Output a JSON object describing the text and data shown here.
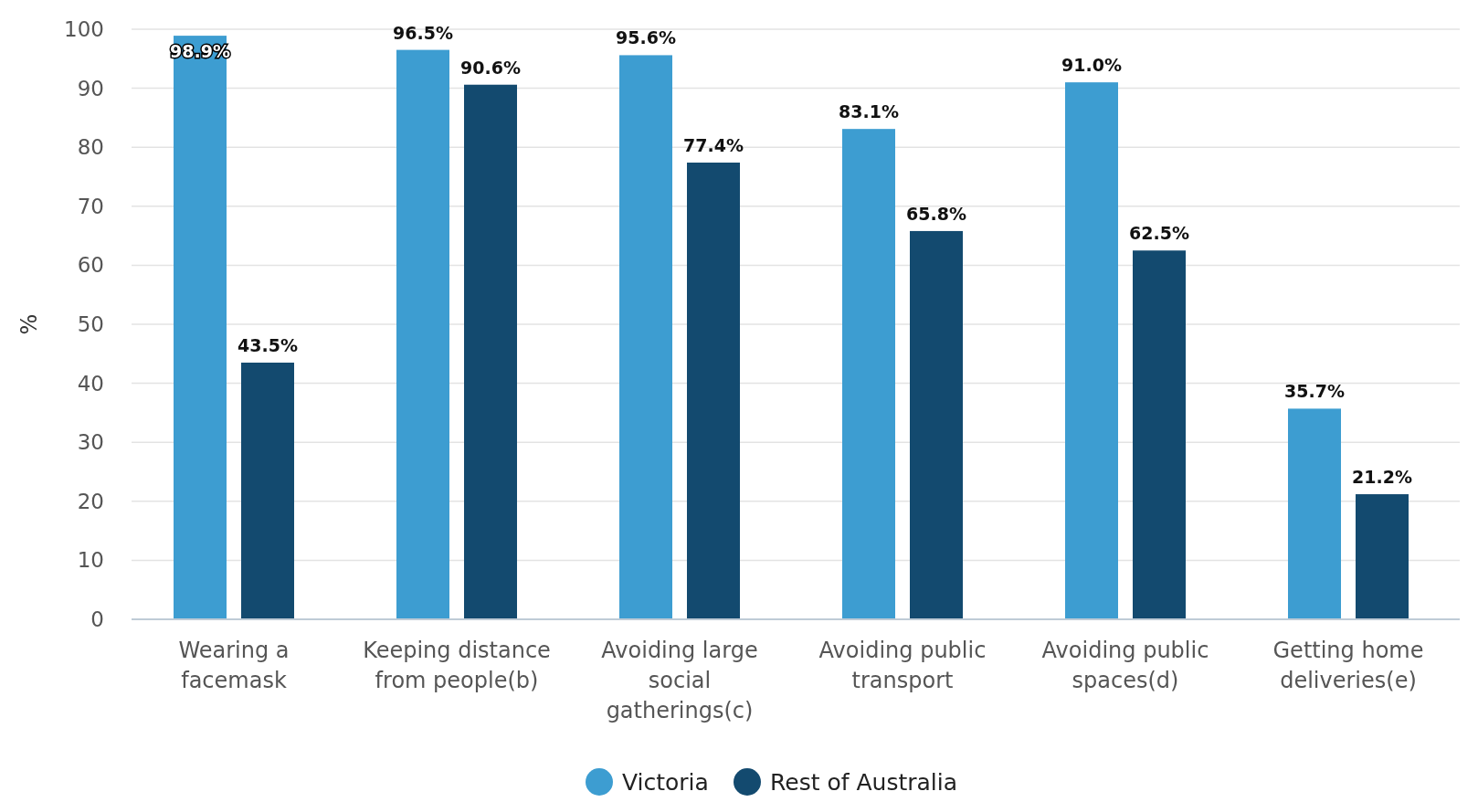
{
  "chart_data": {
    "type": "bar",
    "ylabel": "%",
    "categories": [
      "Wearing a facemask",
      "Keeping distance from people(b)",
      "Avoiding large social gatherings(c)",
      "Avoiding public transport",
      "Avoiding public spaces(d)",
      "Getting home deliveries(e)"
    ],
    "series": [
      {
        "name": "Victoria",
        "color": "#3d9dd1",
        "values": [
          98.9,
          96.5,
          95.6,
          83.1,
          91.0,
          35.7
        ],
        "value_labels": [
          "98.9%",
          "96.5%",
          "95.6%",
          "83.1%",
          "91.0%",
          "35.7%"
        ]
      },
      {
        "name": "Rest of Australia",
        "color": "#134a6f",
        "values": [
          43.5,
          90.6,
          77.4,
          65.8,
          62.5,
          21.2
        ],
        "value_labels": [
          "43.5%",
          "90.6%",
          "77.4%",
          "65.8%",
          "62.5%",
          "21.2%"
        ]
      }
    ],
    "ylim": [
      0,
      100
    ],
    "yticks": [
      0,
      10,
      20,
      30,
      40,
      50,
      60,
      70,
      80,
      90,
      100
    ],
    "grid": "y",
    "legend": "bottom"
  }
}
